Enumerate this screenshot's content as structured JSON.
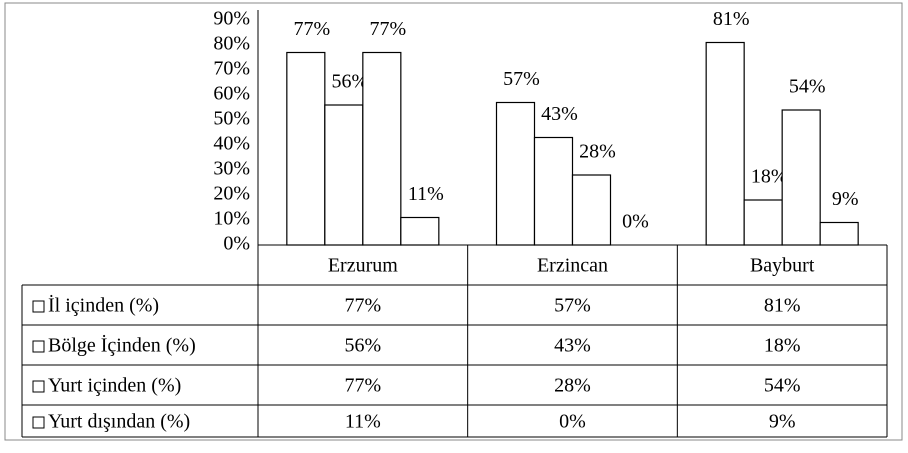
{
  "chart_data": {
    "type": "bar",
    "categories": [
      "Erzurum",
      "Erzincan",
      "Bayburt"
    ],
    "series": [
      {
        "name": "İl içinden (%)",
        "color": "#ffffff",
        "values": [
          77,
          57,
          81
        ],
        "value_labels": [
          "77%",
          "57%",
          "81%"
        ]
      },
      {
        "name": "Bölge İçinden (%)",
        "color": "#ffffff",
        "values": [
          56,
          43,
          18
        ],
        "value_labels": [
          "56%",
          "43%",
          "18%"
        ]
      },
      {
        "name": "Yurt içinden (%)",
        "color": "#ffffff",
        "values": [
          77,
          28,
          54
        ],
        "value_labels": [
          "77%",
          "28%",
          "54%"
        ]
      },
      {
        "name": "Yurt dışından (%)",
        "color": "#ffffff",
        "values": [
          11,
          0,
          9
        ],
        "value_labels": [
          "11%",
          "0%",
          "9%"
        ]
      }
    ],
    "ylim": [
      0,
      90
    ],
    "yticks": [
      {
        "value": 0,
        "label": "0%"
      },
      {
        "value": 10,
        "label": "10%"
      },
      {
        "value": 20,
        "label": "20%"
      },
      {
        "value": 30,
        "label": "30%"
      },
      {
        "value": 40,
        "label": "40%"
      },
      {
        "value": 50,
        "label": "50%"
      },
      {
        "value": 60,
        "label": "60%"
      },
      {
        "value": 70,
        "label": "70%"
      },
      {
        "value": 80,
        "label": "80%"
      },
      {
        "value": 90,
        "label": "90%"
      }
    ],
    "grid": false
  }
}
